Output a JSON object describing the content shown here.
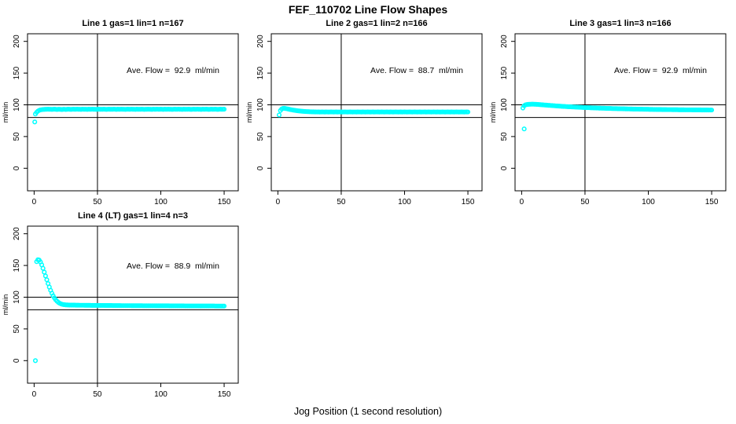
{
  "page_title": "FEF_110702  Line Flow Shapes",
  "x_axis_label": "Jog Position (1 second resolution)",
  "colors": {
    "points": "#00FFFF",
    "axis": "#000000",
    "background": "#FFFFFF",
    "text": "#000000"
  },
  "chart_data": [
    {
      "type": "scatter",
      "title": "Line 1 gas=1 lin=1 n=167",
      "ylabel": "ml/min",
      "annotation": "Ave. Flow =  92.9  ml/min",
      "ave_flow_ml_min": 92.9,
      "x_ticks": [
        0,
        50,
        100,
        150
      ],
      "y_ticks": [
        0,
        50,
        100,
        150,
        200
      ],
      "xlim": [
        0,
        150
      ],
      "ylim": [
        0,
        200
      ],
      "ref_lines_h": [
        80,
        100
      ],
      "ref_lines_v": [
        50
      ],
      "x_start": 1,
      "x_step": 1,
      "y": [
        85.5,
        88.2,
        90.1,
        91.3,
        92,
        92.4,
        92.7,
        92.8,
        92.9,
        93,
        93.1,
        92.9,
        93,
        92.8,
        93,
        93.1,
        92.9,
        92.7,
        92.9,
        93,
        92.8,
        92.6,
        92.9,
        93,
        92.7,
        92.9,
        93.1,
        93,
        92.8,
        93,
        93.1,
        92.9,
        93,
        93.2,
        92.9,
        93,
        92.8,
        93.1,
        93,
        92.9,
        93,
        92.8,
        93.1,
        92.9,
        93,
        93.2,
        92.9,
        93,
        92.8,
        93,
        93.1,
        92.9,
        93,
        92.9,
        93.1,
        93,
        92.8,
        93,
        93.1,
        92.9,
        93,
        92.9,
        93.2,
        93,
        92.8,
        93.1,
        92.9,
        93,
        93.1,
        92.9,
        93,
        92.8,
        93,
        93.1,
        92.9,
        93,
        93.2,
        92.9,
        93,
        92.8,
        93.1,
        92.9,
        93,
        92.9,
        93.1,
        93,
        92.8,
        93,
        92.9,
        93.1,
        93,
        92.9,
        92.8,
        93.1,
        93,
        92.9,
        93.2,
        93,
        92.9,
        93.1,
        93,
        92.8,
        93.1,
        92.9,
        93,
        93.1,
        92.9,
        93,
        92.8,
        93,
        93.1,
        92.9,
        93,
        93.2,
        92.9,
        93,
        92.8,
        93.1,
        92.9,
        93,
        93,
        93.1,
        92.9,
        92.8,
        93,
        93.1,
        92.9,
        93,
        93.2,
        92.9,
        93,
        92.8,
        93.1,
        92.9,
        93,
        93.1,
        92.9,
        92.8,
        93,
        93.1,
        92.9,
        93,
        93.1,
        92.9,
        92.8,
        93,
        93.1,
        92.9,
        93,
        93.1
      ],
      "outliers": [
        [
          0.5,
          73
        ]
      ]
    },
    {
      "type": "scatter",
      "title": "Line 2 gas=1 lin=2 n=166",
      "ylabel": "ml/min",
      "annotation": "Ave. Flow =  88.7  ml/min",
      "ave_flow_ml_min": 88.7,
      "x_ticks": [
        0,
        50,
        100,
        150
      ],
      "y_ticks": [
        0,
        50,
        100,
        150,
        200
      ],
      "xlim": [
        0,
        150
      ],
      "ylim": [
        0,
        200
      ],
      "ref_lines_h": [
        80,
        100
      ],
      "ref_lines_v": [
        50
      ],
      "x_start": 1,
      "x_step": 1,
      "y": [
        84,
        91,
        93.5,
        94.4,
        94.5,
        94.2,
        93.8,
        93.4,
        92.9,
        92.5,
        92.1,
        91.7,
        91.4,
        91.1,
        90.8,
        90.5,
        90.3,
        90.1,
        89.9,
        89.7,
        89.5,
        89.4,
        89.3,
        89.2,
        89.1,
        89,
        88.9,
        88.9,
        88.8,
        88.8,
        88.7,
        88.8,
        88.6,
        88.7,
        88.8,
        88.7,
        88.6,
        88.8,
        88.7,
        88.6,
        88.7,
        88.8,
        88.7,
        88.6,
        88.7,
        88.8,
        88.6,
        88.7,
        88.7,
        88.8,
        88.6,
        88.7,
        88.8,
        88.7,
        88.6,
        88.7,
        88.8,
        88.7,
        88.6,
        88.7,
        88.7,
        88.6,
        88.8,
        88.7,
        88.7,
        88.6,
        88.8,
        88.7,
        88.6,
        88.7,
        88.8,
        88.7,
        88.6,
        88.7,
        88.8,
        88.6,
        88.7,
        88.7,
        88.8,
        88.6,
        88.7,
        88.8,
        88.7,
        88.6,
        88.7,
        88.8,
        88.7,
        88.6,
        88.8,
        88.7,
        88.6,
        88.7,
        88.8,
        88.7,
        88.6,
        88.7,
        88.8,
        88.6,
        88.7,
        88.8,
        88.7,
        88.6,
        88.7,
        88.8,
        88.7,
        88.6,
        88.7,
        88.8,
        88.7,
        88.6,
        88.7,
        88.8,
        88.6,
        88.7,
        88.7,
        88.8,
        88.6,
        88.7,
        88.8,
        88.7,
        88.6,
        88.7,
        88.8,
        88.7,
        88.6,
        88.8,
        88.7,
        88.6,
        88.7,
        88.8,
        88.7,
        88.6,
        88.7,
        88.8,
        88.7,
        88.6,
        88.8,
        88.7,
        88.6,
        88.7,
        88.8,
        88.7,
        88.6,
        88.7,
        88.8,
        88.7,
        88.6,
        88.7,
        88.8,
        88.7
      ],
      "outliers": []
    },
    {
      "type": "scatter",
      "title": "Line 3 gas=1 lin=3 n=166",
      "ylabel": "ml/min",
      "annotation": "Ave. Flow =  92.9  ml/min",
      "ave_flow_ml_min": 92.9,
      "x_ticks": [
        0,
        50,
        100,
        150
      ],
      "y_ticks": [
        0,
        50,
        100,
        150,
        200
      ],
      "xlim": [
        0,
        150
      ],
      "ylim": [
        0,
        200
      ],
      "ref_lines_h": [
        80,
        100
      ],
      "ref_lines_v": [
        50
      ],
      "x_start": 1,
      "x_step": 1,
      "y": [
        95,
        98.5,
        100,
        100.4,
        100.7,
        100.8,
        100.9,
        101,
        101,
        100.9,
        100.8,
        100.7,
        100.6,
        100.4,
        100.2,
        100.1,
        99.9,
        99.7,
        99.6,
        99.4,
        99.2,
        99.1,
        98.9,
        98.8,
        98.6,
        98.5,
        98.3,
        98.2,
        98,
        97.9,
        97.8,
        97.6,
        97.5,
        97.4,
        97.2,
        97.1,
        97,
        96.9,
        96.8,
        96.7,
        96.6,
        96.5,
        96.4,
        96.3,
        96.2,
        96.1,
        96,
        95.9,
        95.8,
        95.7,
        95.6,
        95.5,
        95.5,
        95.4,
        95.3,
        95.2,
        95.1,
        95.1,
        95,
        94.9,
        94.8,
        94.8,
        94.7,
        94.6,
        94.6,
        94.5,
        94.4,
        94.4,
        94.3,
        94.3,
        94.2,
        94.1,
        94.1,
        94,
        94,
        93.9,
        93.9,
        93.8,
        93.8,
        93.7,
        93.7,
        93.6,
        93.6,
        93.5,
        93.5,
        93.4,
        93.4,
        93.3,
        93.3,
        93.3,
        93.2,
        93.2,
        93.1,
        93.1,
        93.1,
        93,
        93,
        92.9,
        92.9,
        92.9,
        92.8,
        92.8,
        92.8,
        92.7,
        92.7,
        92.7,
        92.6,
        92.6,
        92.6,
        92.6,
        92.5,
        92.5,
        92.5,
        92.5,
        92.4,
        92.4,
        92.4,
        92.4,
        92.3,
        92.3,
        92.3,
        92.3,
        92.3,
        92.2,
        92.2,
        92.2,
        92.2,
        92.2,
        92.1,
        92.1,
        92.1,
        92.1,
        92.1,
        92.1,
        92,
        92,
        92,
        92,
        92,
        92,
        92,
        91.9,
        91.9,
        91.9,
        91.9,
        91.9,
        91.9,
        91.8,
        91.8,
        91.8
      ],
      "outliers": [
        [
          2,
          62
        ]
      ]
    },
    {
      "type": "scatter",
      "title": "Line 4 (LT) gas=1 lin=4 n=3",
      "ylabel": "ml/min",
      "annotation": "Ave. Flow =  88.9  ml/min",
      "ave_flow_ml_min": 88.9,
      "x_ticks": [
        0,
        50,
        100,
        150
      ],
      "y_ticks": [
        0,
        50,
        100,
        150,
        200
      ],
      "xlim": [
        0,
        150
      ],
      "ylim": [
        0,
        200
      ],
      "ref_lines_h": [
        80,
        100
      ],
      "ref_lines_v": [
        50
      ],
      "x_start": 1,
      "x_step": 1,
      "y": [
        0,
        156,
        159,
        158.5,
        155.5,
        151,
        145.5,
        139.5,
        133.5,
        127.5,
        121.5,
        116,
        110.8,
        106.2,
        102.2,
        98.8,
        96,
        93.8,
        92,
        90.6,
        89.6,
        88.9,
        88.4,
        88.1,
        87.9,
        87.8,
        87.7,
        87.6,
        87.6,
        87.5,
        87.5,
        87.5,
        87.4,
        87.4,
        87.4,
        87.3,
        87.3,
        87.3,
        87.3,
        87.2,
        87.2,
        87.2,
        87.2,
        87.2,
        87.1,
        87.1,
        87.1,
        87.1,
        87.1,
        87,
        87,
        87,
        87,
        87,
        87,
        86.9,
        86.9,
        86.9,
        86.9,
        86.9,
        86.9,
        86.8,
        86.8,
        86.8,
        86.8,
        86.8,
        86.8,
        86.8,
        86.7,
        86.7,
        86.7,
        86.7,
        86.7,
        86.7,
        86.7,
        86.7,
        86.6,
        86.6,
        86.6,
        86.6,
        86.6,
        86.6,
        86.6,
        86.6,
        86.6,
        86.5,
        86.5,
        86.5,
        86.5,
        86.5,
        86.5,
        86.5,
        86.5,
        86.5,
        86.5,
        86.4,
        86.4,
        86.4,
        86.4,
        86.4,
        86.4,
        86.4,
        86.4,
        86.4,
        86.4,
        86.4,
        86.3,
        86.3,
        86.3,
        86.3,
        86.3,
        86.3,
        86.3,
        86.3,
        86.3,
        86.3,
        86.3,
        86.3,
        86.2,
        86.2,
        86.2,
        86.2,
        86.2,
        86.2,
        86.2,
        86.2,
        86.2,
        86.2,
        86.2,
        86.2,
        86.1,
        86.1,
        86.1,
        86.1,
        86.1,
        86.1,
        86.1,
        86.1,
        86.1,
        86.1,
        86.1,
        86.1,
        86,
        86,
        86,
        86,
        86,
        86,
        86,
        86
      ],
      "outliers": []
    }
  ]
}
